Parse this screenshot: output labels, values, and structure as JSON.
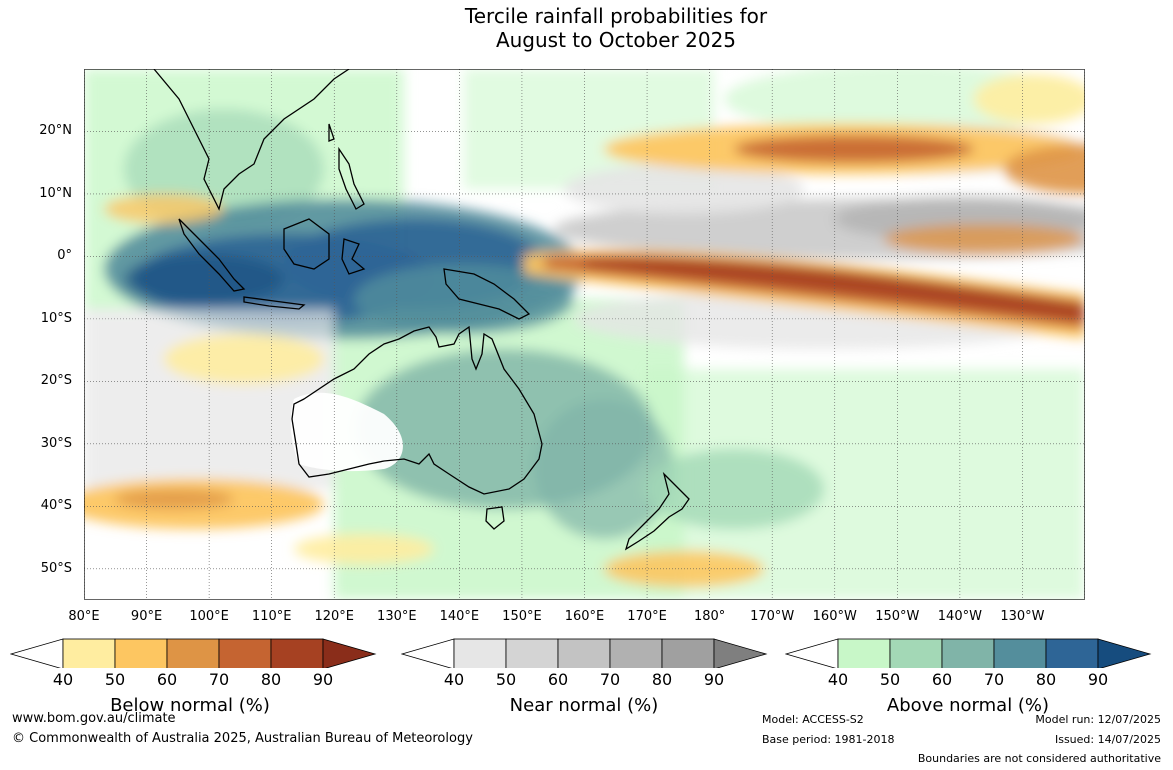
{
  "title": {
    "line1": "Tercile rainfall probabilities for",
    "line2": "August to October 2025"
  },
  "map": {
    "extent": {
      "lon_min": 80,
      "lon_max": 240,
      "lat_min": -55,
      "lat_max": 30
    },
    "lat_labels": [
      "20°N",
      "10°N",
      "0°",
      "10°S",
      "20°S",
      "30°S",
      "40°S",
      "50°S"
    ],
    "lon_labels": [
      "80°E",
      "90°E",
      "100°E",
      "110°E",
      "120°E",
      "130°E",
      "140°E",
      "150°E",
      "160°E",
      "170°E",
      "180°",
      "170°W",
      "160°W",
      "150°W",
      "140°W",
      "130°W"
    ],
    "ocean_color": "#ffffff",
    "coast_color": "#000000"
  },
  "legends": [
    {
      "title": "Below normal (%)",
      "ticks": [
        "40",
        "50",
        "60",
        "70",
        "80",
        "90"
      ],
      "colors": [
        "#ffeda0",
        "#fdc661",
        "#de9445",
        "#c56431",
        "#a64122",
        "#8a2d1a"
      ]
    },
    {
      "title": "Near normal (%)",
      "ticks": [
        "40",
        "50",
        "60",
        "70",
        "80",
        "90"
      ],
      "colors": [
        "#e6e6e6",
        "#d4d4d4",
        "#c3c3c3",
        "#b1b1b1",
        "#a0a0a0",
        "#7f7f7f"
      ]
    },
    {
      "title": "Above normal (%)",
      "ticks": [
        "40",
        "50",
        "60",
        "70",
        "80",
        "90"
      ],
      "colors": [
        "#c8f7c8",
        "#a3d8b6",
        "#80b4a8",
        "#548e9c",
        "#2e6596",
        "#164c7e"
      ]
    }
  ],
  "footer": {
    "url": "www.bom.gov.au/climate",
    "copyright": "© Commonwealth of Australia 2025, Australian Bureau of Meteorology",
    "model": "Model: ACCESS-S2",
    "base_period": "Base period: 1981-2018",
    "model_run": "Model run: 12/07/2025",
    "issued": "Issued: 14/07/2025",
    "boundaries": "Boundaries are not considered authoritative"
  }
}
